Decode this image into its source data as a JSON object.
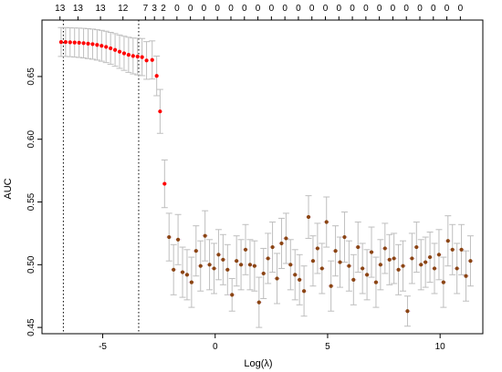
{
  "chart_data": {
    "type": "scatter",
    "title": "",
    "xlabel": "Log(λ)",
    "ylabel": "AUC",
    "xlim": [
      -7.7,
      11.9
    ],
    "ylim": [
      0.445,
      0.695
    ],
    "x_ticks": [
      -5,
      0,
      5,
      10
    ],
    "x_tick_labels": [
      "-5",
      "0",
      "5",
      "10"
    ],
    "y_ticks": [
      0.45,
      0.5,
      0.55,
      0.6,
      0.65
    ],
    "y_tick_labels": [
      "0.45",
      "0.50",
      "0.55",
      "0.60",
      "0.65"
    ],
    "top_axis": {
      "x": [
        -6.9,
        -6.1,
        -5.1,
        -4.1,
        -3.1,
        -2.7,
        -2.3,
        -1.7,
        -1.1,
        -0.5,
        0.1,
        0.7,
        1.3,
        1.9,
        2.5,
        3.1,
        3.7,
        4.3,
        4.9,
        5.5,
        6.1,
        6.7,
        7.3,
        7.9,
        8.5,
        9.1,
        9.7,
        10.3,
        10.9
      ],
      "labels": [
        "13",
        "13",
        "13",
        "12",
        "7",
        "3",
        "2",
        "0",
        "0",
        "0",
        "0",
        "0",
        "0",
        "0",
        "0",
        "0",
        "0",
        "0",
        "0",
        "0",
        "0",
        "0",
        "0",
        "0",
        "0",
        "0",
        "0",
        "0",
        "0"
      ]
    },
    "reference_lines_x": [
      -6.75,
      -3.4
    ],
    "grid": false,
    "colors": {
      "point_high": "#ff0000",
      "point_low": "#8b4513",
      "errorbar": "#bebebe",
      "errorbar_low": "#e8c8e8",
      "reference_line": "#000000"
    },
    "series": [
      {
        "x": [
          -6.85,
          -6.65,
          -6.45,
          -6.25,
          -6.05,
          -5.85,
          -5.65,
          -5.45,
          -5.25,
          -5.05,
          -4.85,
          -4.65,
          -4.45,
          -4.25,
          -4.05,
          -3.85,
          -3.65,
          -3.45,
          -3.25,
          -3.05,
          -2.8,
          -2.6,
          -2.45,
          -2.25
        ],
        "y": [
          0.6775,
          0.6775,
          0.6773,
          0.6771,
          0.6769,
          0.6766,
          0.6762,
          0.6758,
          0.6752,
          0.6745,
          0.6736,
          0.6725,
          0.6712,
          0.6698,
          0.6685,
          0.6673,
          0.6664,
          0.6659,
          0.6655,
          0.6628,
          0.6632,
          0.6505,
          0.6222,
          0.5645
        ],
        "err": [
          0.0115,
          0.0115,
          0.0115,
          0.0116,
          0.0117,
          0.0118,
          0.0119,
          0.012,
          0.0121,
          0.0123,
          0.0125,
          0.0127,
          0.013,
          0.0133,
          0.0136,
          0.014,
          0.0143,
          0.0146,
          0.0148,
          0.015,
          0.0152,
          0.0158,
          0.0175,
          0.019
        ]
      },
      {
        "x": [
          -2.05,
          -1.85,
          -1.65,
          -1.45,
          -1.25,
          -1.05,
          -0.85,
          -0.65,
          -0.45,
          -0.25,
          -0.05,
          0.15,
          0.35,
          0.55,
          0.75,
          0.95,
          1.15,
          1.35,
          1.55,
          1.75,
          1.95,
          2.15,
          2.35,
          2.55,
          2.75,
          2.95,
          3.15,
          3.35,
          3.55,
          3.75,
          3.95,
          4.15,
          4.35,
          4.55,
          4.75,
          4.95,
          5.15,
          5.35,
          5.55,
          5.75,
          5.95,
          6.15,
          6.35,
          6.55,
          6.75,
          6.95,
          7.15,
          7.35,
          7.55,
          7.75,
          7.95,
          8.15,
          8.35,
          8.55,
          8.75,
          8.95,
          9.15,
          9.35,
          9.55,
          9.75,
          9.95,
          10.15,
          10.35,
          10.55,
          10.75,
          10.95,
          11.15,
          11.35
        ],
        "y": [
          0.522,
          0.496,
          0.52,
          0.494,
          0.492,
          0.486,
          0.511,
          0.499,
          0.523,
          0.5,
          0.497,
          0.508,
          0.504,
          0.496,
          0.476,
          0.503,
          0.5,
          0.512,
          0.5,
          0.499,
          0.47,
          0.493,
          0.505,
          0.514,
          0.489,
          0.517,
          0.521,
          0.5,
          0.492,
          0.488,
          0.479,
          0.538,
          0.503,
          0.513,
          0.497,
          0.534,
          0.483,
          0.511,
          0.502,
          0.522,
          0.499,
          0.488,
          0.514,
          0.497,
          0.492,
          0.51,
          0.486,
          0.5,
          0.513,
          0.504,
          0.505,
          0.496,
          0.499,
          0.463,
          0.505,
          0.514,
          0.5,
          0.502,
          0.506,
          0.497,
          0.508,
          0.486,
          0.519,
          0.512,
          0.497,
          0.512,
          0.491,
          0.503
        ],
        "err": [
          0.019,
          0.02,
          0.02,
          0.02,
          0.02,
          0.02,
          0.02,
          0.02,
          0.02,
          0.02,
          0.02,
          0.02,
          0.02,
          0.02,
          0.013,
          0.02,
          0.02,
          0.02,
          0.02,
          0.02,
          0.02,
          0.02,
          0.02,
          0.02,
          0.02,
          0.02,
          0.02,
          0.02,
          0.02,
          0.02,
          0.02,
          0.017,
          0.02,
          0.02,
          0.02,
          0.02,
          0.02,
          0.02,
          0.02,
          0.02,
          0.02,
          0.02,
          0.02,
          0.02,
          0.02,
          0.02,
          0.02,
          0.02,
          0.02,
          0.02,
          0.02,
          0.02,
          0.02,
          0.012,
          0.02,
          0.02,
          0.02,
          0.02,
          0.02,
          0.02,
          0.02,
          0.02,
          0.02,
          0.02,
          0.02,
          0.02,
          0.02,
          0.02
        ]
      }
    ]
  }
}
